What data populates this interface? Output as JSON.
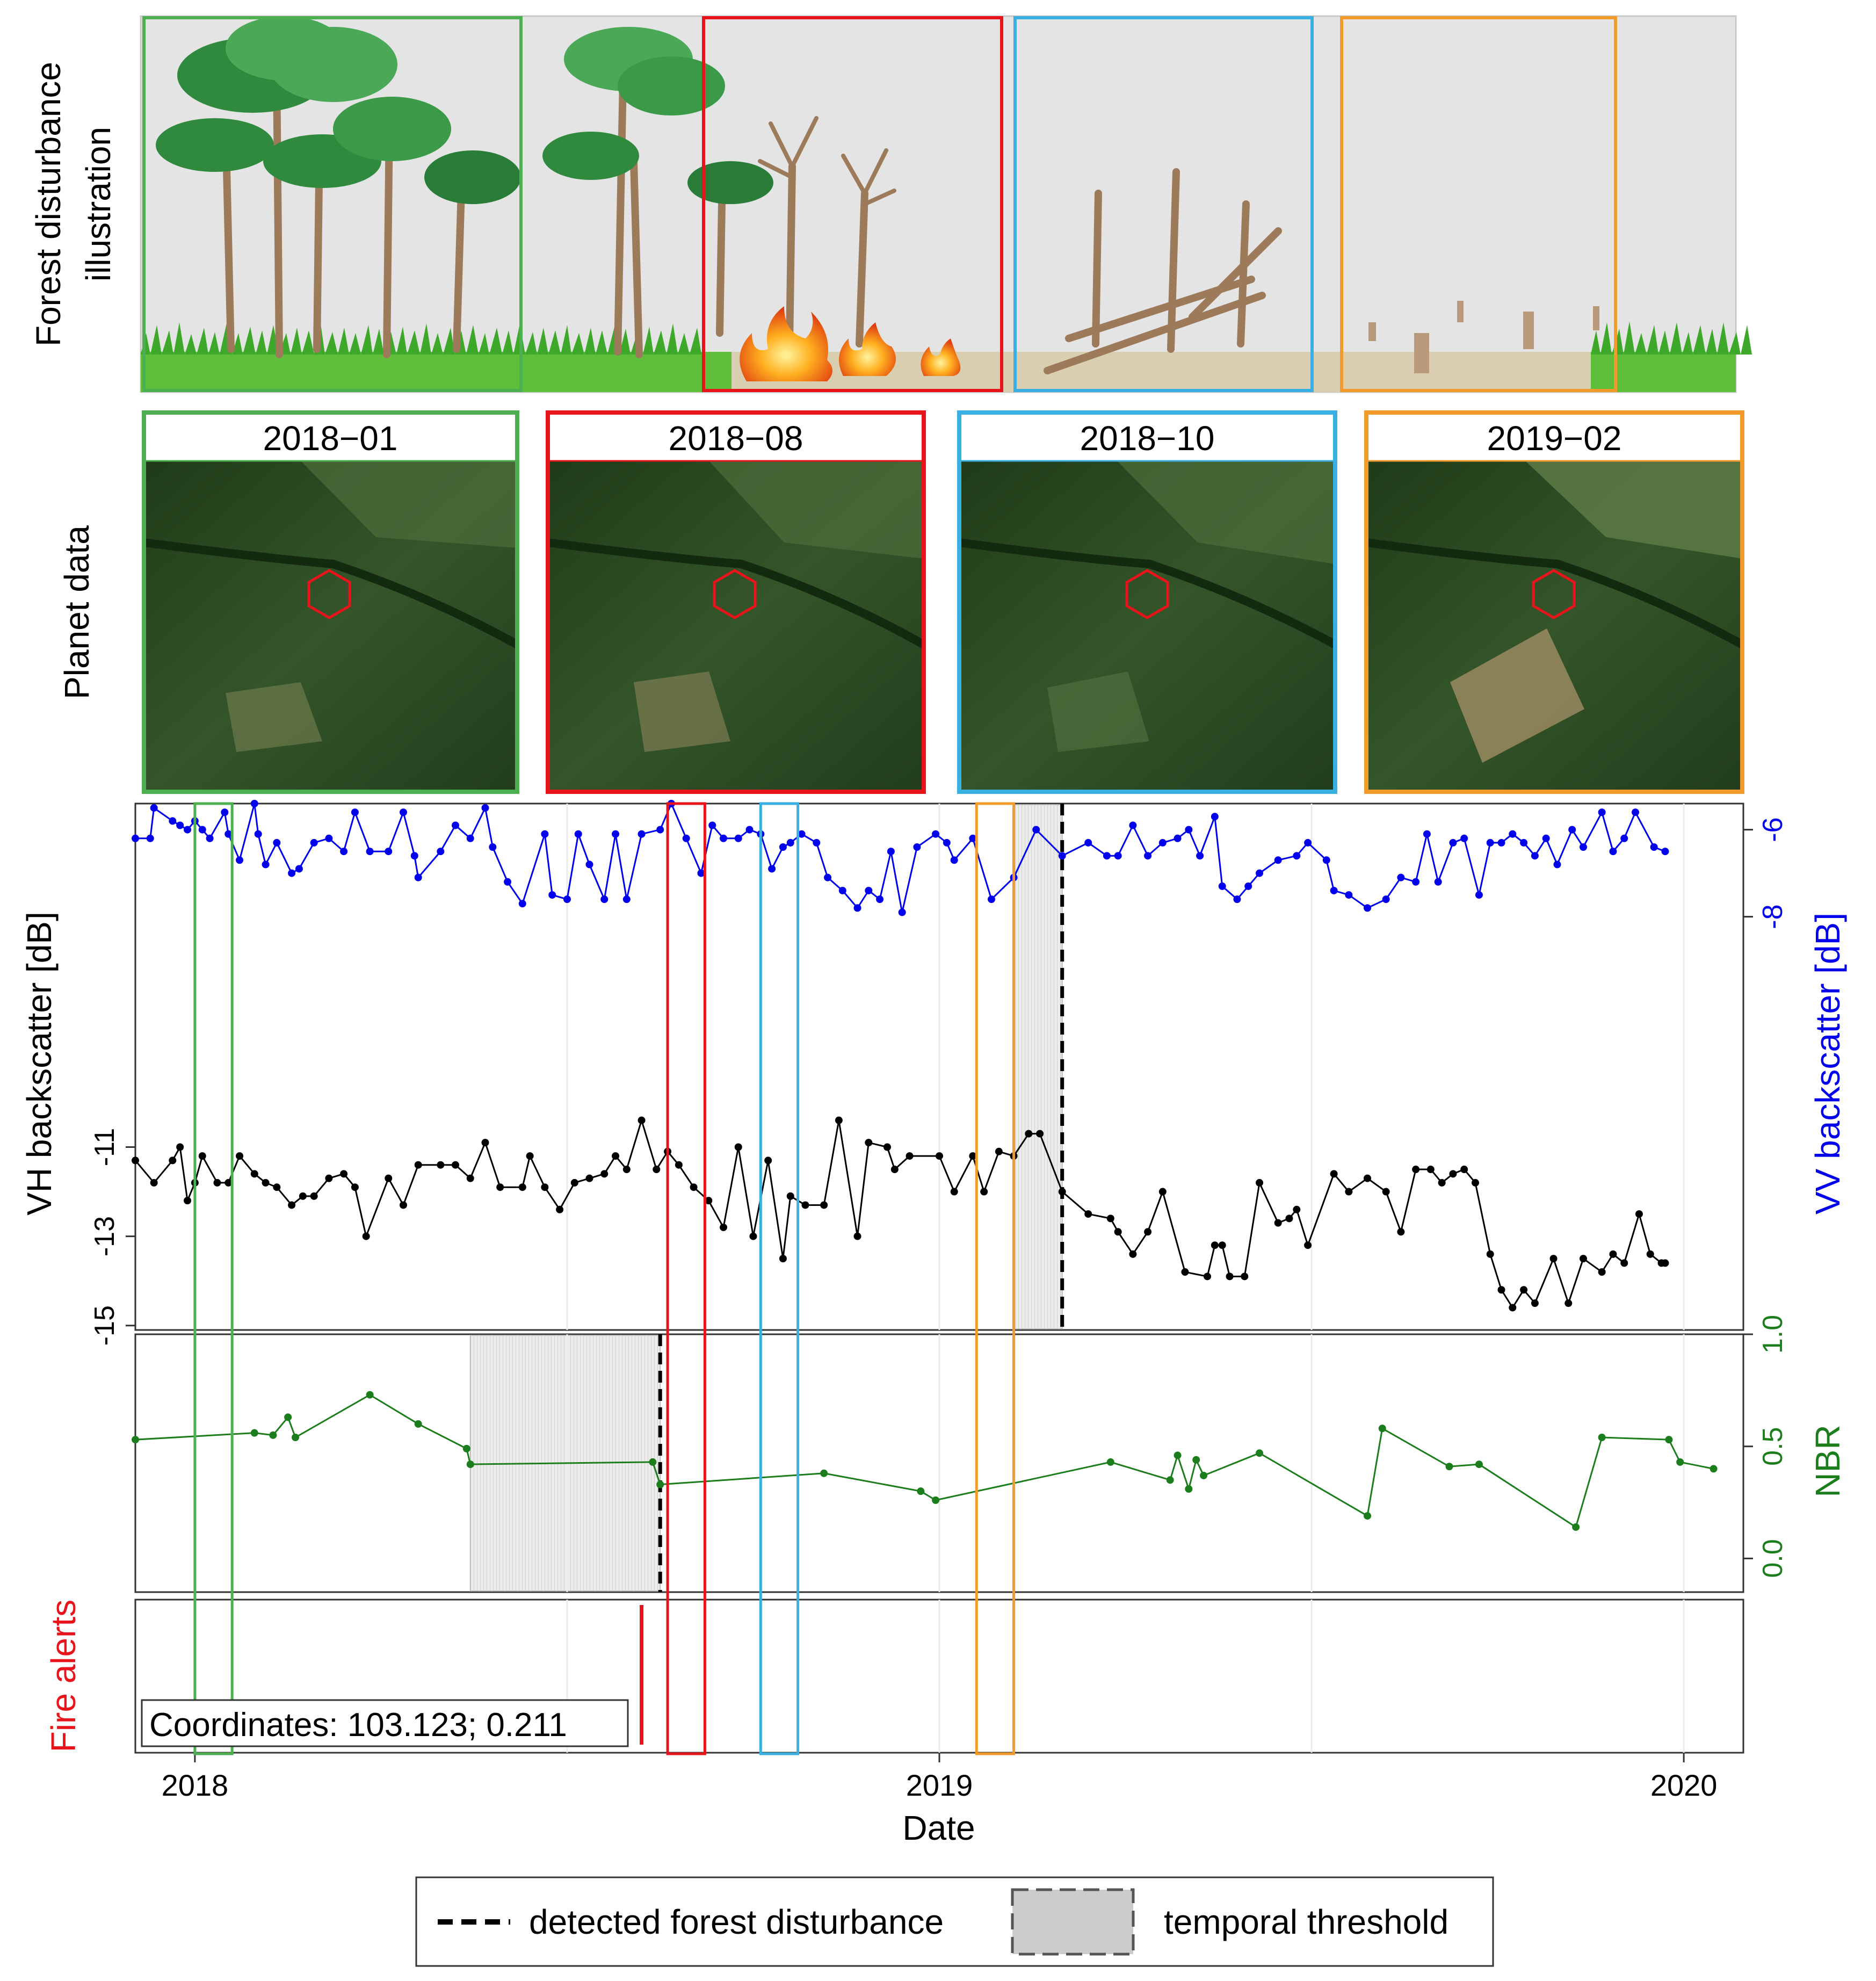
{
  "figure": {
    "row_labels": {
      "illustration_line1": "Forest disturbance",
      "illustration_line2": "illustration",
      "planet": "Planet data",
      "fire": "Fire alerts"
    },
    "colors": {
      "green": "#4caf50",
      "red": "#e8141b",
      "blue": "#3ab0e2",
      "orange": "#f39a2c",
      "vv_series": "#0000ee",
      "vh_series": "#000000",
      "nbr_series": "#1b7d1b",
      "fire_alert": "#e8141b",
      "threshold_fill": "#e6e6e6"
    },
    "planet_panels": [
      {
        "date": "2018−01",
        "color_key": "green"
      },
      {
        "date": "2018−08",
        "color_key": "red"
      },
      {
        "date": "2018−10",
        "color_key": "blue"
      },
      {
        "date": "2019−02",
        "color_key": "orange"
      }
    ],
    "coordinates_label": "Coordinates: 103.123; 0.211",
    "legend": {
      "detected": "detected forest disturbance",
      "threshold": "temporal threshold"
    }
  },
  "chart_data": [
    {
      "type": "line",
      "name": "VV backscatter",
      "ylabel": "VV backscatter [dB]",
      "axis": "right",
      "ylim": [
        -17.5,
        -5.4
      ],
      "yticks": [
        -6,
        -8
      ],
      "x_unit": "decimal year",
      "detected_disturbance_x": 2019.165,
      "temporal_threshold": [
        2019.1,
        2019.165
      ],
      "x": [
        2017.92,
        2017.94,
        2017.945,
        2017.97,
        2017.98,
        2017.99,
        2018.0,
        2018.01,
        2018.02,
        2018.04,
        2018.045,
        2018.06,
        2018.08,
        2018.085,
        2018.095,
        2018.11,
        2018.13,
        2018.14,
        2018.16,
        2018.18,
        2018.2,
        2018.215,
        2018.235,
        2018.26,
        2018.28,
        2018.295,
        2018.3,
        2018.33,
        2018.35,
        2018.37,
        2018.39,
        2018.4,
        2018.42,
        2018.44,
        2018.47,
        2018.48,
        2018.5,
        2018.515,
        2018.53,
        2018.55,
        2018.565,
        2018.58,
        2018.6,
        2018.625,
        2018.64,
        2018.66,
        2018.68,
        2018.695,
        2018.71,
        2018.73,
        2018.745,
        2018.76,
        2018.775,
        2018.79,
        2018.8,
        2018.815,
        2018.835,
        2018.85,
        2018.87,
        2018.89,
        2018.905,
        2018.92,
        2018.935,
        2018.95,
        2018.97,
        2018.995,
        2019.01,
        2019.02,
        2019.045,
        2019.07,
        2019.1,
        2019.13,
        2019.165,
        2019.2,
        2019.225,
        2019.24,
        2019.26,
        2019.28,
        2019.3,
        2019.32,
        2019.335,
        2019.35,
        2019.37,
        2019.38,
        2019.4,
        2019.415,
        2019.43,
        2019.455,
        2019.48,
        2019.495,
        2019.52,
        2019.53,
        2019.55,
        2019.575,
        2019.6,
        2019.62,
        2019.64,
        2019.655,
        2019.67,
        2019.69,
        2019.705,
        2019.725,
        2019.74,
        2019.755,
        2019.77,
        2019.785,
        2019.8,
        2019.815,
        2019.83,
        2019.85,
        2019.865,
        2019.89,
        2019.905,
        2019.92,
        2019.935,
        2019.96,
        2019.975
      ],
      "values": [
        -6.2,
        -6.2,
        -5.5,
        -5.8,
        -5.9,
        -6.0,
        -5.8,
        -6.0,
        -6.2,
        -5.6,
        -6.1,
        -6.7,
        -5.4,
        -6.1,
        -6.8,
        -6.3,
        -7.0,
        -6.9,
        -6.3,
        -6.2,
        -6.5,
        -5.6,
        -6.5,
        -6.5,
        -5.6,
        -6.6,
        -7.1,
        -6.5,
        -5.9,
        -6.2,
        -5.5,
        -6.4,
        -7.2,
        -7.7,
        -6.1,
        -7.5,
        -7.6,
        -6.1,
        -6.8,
        -7.6,
        -6.1,
        -7.6,
        -6.1,
        -6.0,
        -5.4,
        -6.2,
        -7.0,
        -5.9,
        -6.2,
        -6.2,
        -6.0,
        -6.1,
        -6.9,
        -6.4,
        -6.3,
        -6.1,
        -6.3,
        -7.1,
        -7.4,
        -7.8,
        -7.4,
        -7.6,
        -6.5,
        -7.9,
        -6.4,
        -6.1,
        -6.3,
        -6.7,
        -6.2,
        -7.6,
        -7.1,
        -6.0,
        -6.6,
        -6.3,
        -6.6,
        -6.6,
        -5.9,
        -6.6,
        -6.3,
        -6.2,
        -6.0,
        -6.6,
        -5.7,
        -7.3,
        -7.6,
        -7.3,
        -7.0,
        -6.7,
        -6.6,
        -6.3,
        -6.7,
        -7.4,
        -7.5,
        -7.8,
        -7.6,
        -7.1,
        -7.2,
        -6.1,
        -7.2,
        -6.3,
        -6.2,
        -7.5,
        -6.3,
        -6.3,
        -6.1,
        -6.3,
        -6.6,
        -6.2,
        -6.8,
        -6.0,
        -6.4,
        -5.6,
        -6.5,
        -6.2,
        -5.6,
        -6.4,
        -6.5
      ]
    },
    {
      "type": "line",
      "name": "VH backscatter",
      "ylabel": "VH backscatter [dB]",
      "axis": "left",
      "ylim": [
        -15.1,
        -3.3
      ],
      "yticks": [
        -11,
        -13,
        -15
      ],
      "x_unit": "decimal year",
      "x": [
        2017.92,
        2017.945,
        2017.97,
        2017.98,
        2017.99,
        2018.0,
        2018.01,
        2018.03,
        2018.045,
        2018.06,
        2018.08,
        2018.095,
        2018.11,
        2018.13,
        2018.145,
        2018.16,
        2018.18,
        2018.2,
        2018.215,
        2018.23,
        2018.26,
        2018.28,
        2018.3,
        2018.33,
        2018.35,
        2018.37,
        2018.39,
        2018.41,
        2018.44,
        2018.45,
        2018.47,
        2018.49,
        2018.51,
        2018.53,
        2018.55,
        2018.565,
        2018.58,
        2018.6,
        2018.62,
        2018.635,
        2018.65,
        2018.67,
        2018.69,
        2018.71,
        2018.73,
        2018.75,
        2018.77,
        2018.79,
        2018.8,
        2018.82,
        2018.845,
        2018.865,
        2018.89,
        2018.905,
        2018.93,
        2018.94,
        2018.96,
        2019.0,
        2019.02,
        2019.045,
        2019.06,
        2019.08,
        2019.1,
        2019.12,
        2019.135,
        2019.165,
        2019.2,
        2019.23,
        2019.24,
        2019.26,
        2019.28,
        2019.3,
        2019.33,
        2019.36,
        2019.37,
        2019.38,
        2019.39,
        2019.41,
        2019.43,
        2019.455,
        2019.47,
        2019.48,
        2019.495,
        2019.53,
        2019.55,
        2019.575,
        2019.6,
        2019.62,
        2019.64,
        2019.66,
        2019.675,
        2019.69,
        2019.705,
        2019.72,
        2019.74,
        2019.755,
        2019.77,
        2019.785,
        2019.8,
        2019.825,
        2019.845,
        2019.865,
        2019.89,
        2019.905,
        2019.92,
        2019.94,
        2019.955,
        2019.97,
        2019.975
      ],
      "values": [
        -11.3,
        -11.8,
        -11.3,
        -11.0,
        -12.2,
        -11.8,
        -11.2,
        -11.8,
        -11.8,
        -11.2,
        -11.6,
        -11.8,
        -11.9,
        -12.3,
        -12.1,
        -12.1,
        -11.7,
        -11.6,
        -11.9,
        -13.0,
        -11.7,
        -12.3,
        -11.4,
        -11.4,
        -11.4,
        -11.7,
        -10.9,
        -11.9,
        -11.9,
        -11.2,
        -11.9,
        -12.4,
        -11.8,
        -11.7,
        -11.6,
        -11.2,
        -11.5,
        -10.4,
        -11.5,
        -11.1,
        -11.4,
        -11.9,
        -12.2,
        -12.8,
        -11.0,
        -13.0,
        -11.3,
        -13.5,
        -12.1,
        -12.3,
        -12.3,
        -10.4,
        -13.0,
        -10.9,
        -11.0,
        -11.5,
        -11.2,
        -11.2,
        -12.0,
        -11.2,
        -12.0,
        -11.1,
        -11.2,
        -10.7,
        -10.7,
        -12.0,
        -12.5,
        -12.6,
        -12.9,
        -13.4,
        -12.9,
        -12.0,
        -13.8,
        -13.9,
        -13.2,
        -13.2,
        -13.9,
        -13.9,
        -11.8,
        -12.7,
        -12.6,
        -12.4,
        -13.2,
        -11.6,
        -12.0,
        -11.7,
        -12.0,
        -12.9,
        -11.5,
        -11.5,
        -11.8,
        -11.6,
        -11.5,
        -11.8,
        -13.4,
        -14.2,
        -14.6,
        -14.2,
        -14.5,
        -13.5,
        -14.5,
        -13.5,
        -13.8,
        -13.4,
        -13.6,
        -12.5,
        -13.4,
        -13.6,
        -13.6
      ]
    },
    {
      "type": "line",
      "name": "NBR",
      "ylabel": "NBR",
      "ylim": [
        -0.15,
        1.0
      ],
      "yticks": [
        0.0,
        0.5,
        1.0
      ],
      "x_unit": "decimal year",
      "detected_disturbance_x": 2018.625,
      "temporal_threshold": [
        2018.37,
        2018.625
      ],
      "x": [
        2017.92,
        2018.08,
        2018.105,
        2018.125,
        2018.135,
        2018.235,
        2018.3,
        2018.365,
        2018.37,
        2018.615,
        2018.625,
        2018.845,
        2018.975,
        2018.995,
        2019.23,
        2019.31,
        2019.32,
        2019.335,
        2019.345,
        2019.355,
        2019.43,
        2019.575,
        2019.595,
        2019.685,
        2019.725,
        2019.855,
        2019.89,
        2019.98,
        2019.995,
        2020.04
      ],
      "values": [
        0.53,
        0.56,
        0.55,
        0.63,
        0.54,
        0.73,
        0.6,
        0.49,
        0.42,
        0.43,
        0.33,
        0.38,
        0.3,
        0.26,
        0.43,
        0.35,
        0.46,
        0.31,
        0.44,
        0.37,
        0.47,
        0.19,
        0.58,
        0.41,
        0.42,
        0.14,
        0.54,
        0.53,
        0.43,
        0.4
      ]
    },
    {
      "type": "bar",
      "name": "Fire alerts",
      "x_unit": "decimal year",
      "x": [
        2018.6
      ],
      "values": [
        1
      ]
    },
    {
      "type": "axis",
      "name": "Date axis",
      "xlabel": "Date",
      "xlim": [
        2017.92,
        2020.08
      ],
      "xticks": [
        2018,
        2019,
        2020
      ],
      "xtick_labels": [
        "2018",
        "2019",
        "2020"
      ],
      "highlight_windows": [
        {
          "start": 2018.0,
          "end": 2018.05,
          "color_key": "green"
        },
        {
          "start": 2018.635,
          "end": 2018.685,
          "color_key": "red"
        },
        {
          "start": 2018.76,
          "end": 2018.81,
          "color_key": "blue"
        },
        {
          "start": 2019.05,
          "end": 2019.1,
          "color_key": "orange"
        }
      ]
    }
  ]
}
